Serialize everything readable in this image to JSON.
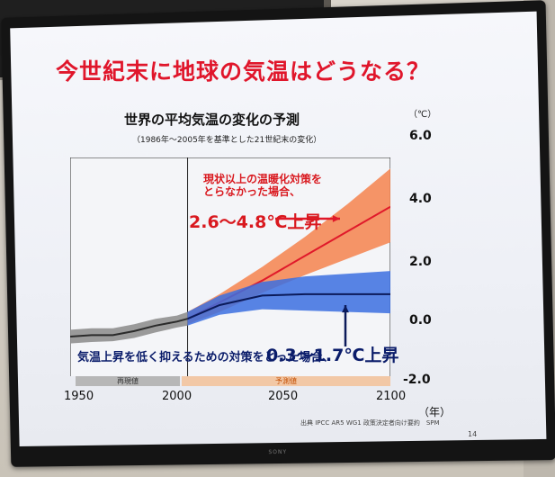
{
  "slide": {
    "title": "今世紀末に地球の気温はどうなる？",
    "subtitle": "世界の平均気温の変化の予測",
    "note": "（1986年～2005年を基準とした21世紀末の変化）",
    "source": "出典 IPCC AR5 WG1 政策決定者向け要約　SPM",
    "page_number": "14",
    "tv_brand": "SONY"
  },
  "annotations": {
    "high_line1": "現状以上の温暖化対策を",
    "high_line2": "とらなかった場合、",
    "high_range": "2.6～4.8℃上昇",
    "low_text": "気温上昇を低く抑えるための対策をとった場合、",
    "low_range": "0.3～1.7℃上昇"
  },
  "chart_data": {
    "type": "area",
    "title": "世界の平均気温の変化の予測",
    "xlabel": "（年）",
    "ylabel": "（℃）",
    "xlim": [
      1950,
      2100
    ],
    "ylim": [
      -2.0,
      6.0
    ],
    "x_ticks": [
      "1950",
      "2000",
      "2050",
      "2100"
    ],
    "y_ticks": [
      "6.0",
      "4.0",
      "2.0",
      "0.0",
      "-2.0"
    ],
    "periods": [
      {
        "label": "再現値",
        "from": 1950,
        "to": 2005
      },
      {
        "label": "予測値",
        "from": 2006,
        "to": 2100
      }
    ],
    "series": [
      {
        "name": "historical",
        "color": "#2b2b2b",
        "band_color": "#8a8a8a",
        "x": [
          1950,
          1960,
          1970,
          1980,
          1990,
          2000,
          2005
        ],
        "mean": [
          -0.55,
          -0.5,
          -0.5,
          -0.35,
          -0.15,
          0.0,
          0.1
        ],
        "lower": [
          -0.8,
          -0.75,
          -0.72,
          -0.6,
          -0.4,
          -0.22,
          -0.15
        ],
        "upper": [
          -0.3,
          -0.25,
          -0.25,
          -0.1,
          0.1,
          0.22,
          0.35
        ]
      },
      {
        "name": "high-emission",
        "color": "#e0192a",
        "band_color": "#f4834e",
        "x": [
          2005,
          2020,
          2040,
          2060,
          2080,
          2100
        ],
        "mean": [
          0.1,
          0.7,
          1.5,
          2.4,
          3.3,
          4.2
        ],
        "lower": [
          -0.1,
          0.35,
          1.05,
          1.7,
          2.3,
          2.9
        ],
        "upper": [
          0.35,
          1.0,
          2.0,
          3.1,
          4.3,
          5.6
        ]
      },
      {
        "name": "low-emission",
        "color": "#0b1a5a",
        "band_color": "#3b6fe0",
        "x": [
          2005,
          2020,
          2040,
          2060,
          2080,
          2100
        ],
        "mean": [
          0.1,
          0.6,
          0.95,
          1.0,
          1.0,
          1.0
        ],
        "lower": [
          -0.15,
          0.25,
          0.45,
          0.4,
          0.35,
          0.3
        ],
        "upper": [
          0.35,
          0.95,
          1.45,
          1.65,
          1.75,
          1.85
        ]
      }
    ],
    "grid": false,
    "legend": "none"
  }
}
